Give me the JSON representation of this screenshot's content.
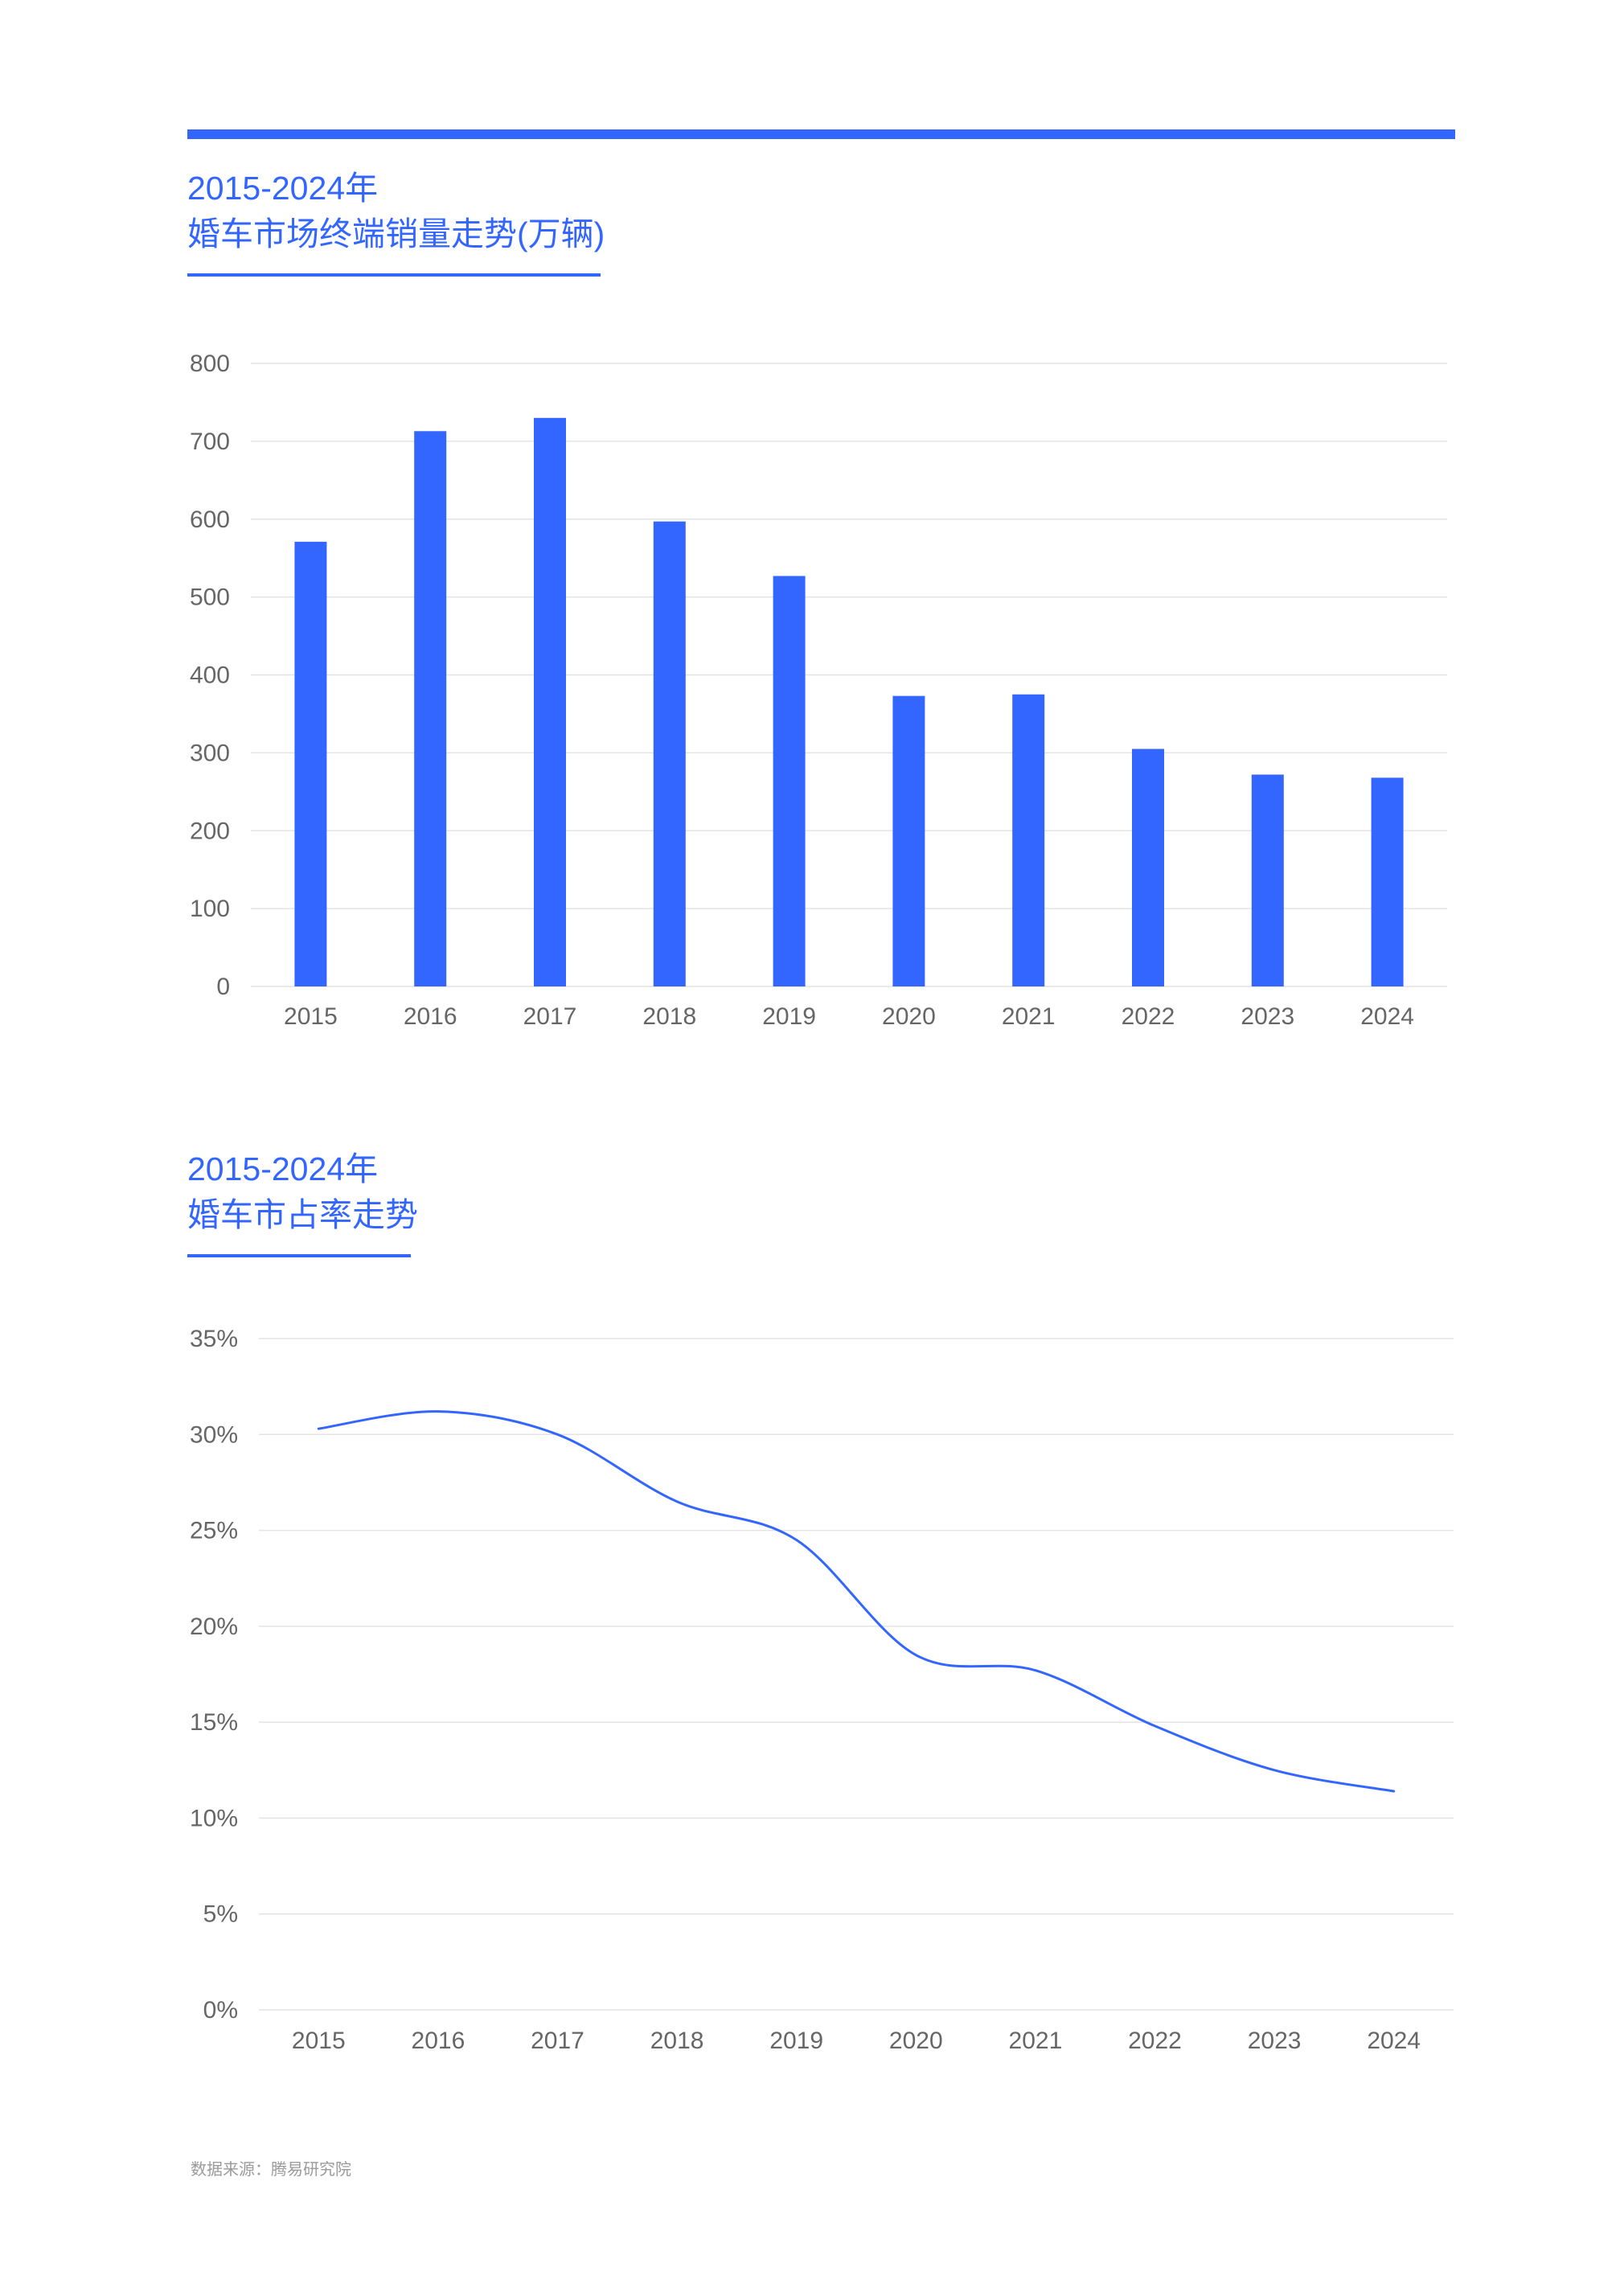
{
  "accent_color": "#3366ff",
  "header": {
    "chart1_title_line1": "2015-2024年",
    "chart1_title_line2": "婚车市场终端销量走势(万辆)",
    "chart2_title_line1": "2015-2024年",
    "chart2_title_line2": "婚车市占率走势"
  },
  "source_text": "数据来源：腾易研究院",
  "chart_data": [
    {
      "type": "bar",
      "title": "2015-2024年 婚车市场终端销量走势(万辆)",
      "categories": [
        "2015",
        "2016",
        "2017",
        "2018",
        "2019",
        "2020",
        "2021",
        "2022",
        "2023",
        "2024"
      ],
      "values": [
        571,
        713,
        730,
        597,
        527,
        373,
        375,
        305,
        272,
        268
      ],
      "ylim": [
        0,
        800
      ],
      "yticks": [
        0,
        100,
        200,
        300,
        400,
        500,
        600,
        700,
        800
      ],
      "ytick_labels": [
        "0",
        "100",
        "200",
        "300",
        "400",
        "500",
        "600",
        "700",
        "800"
      ],
      "grid": true,
      "color": "#3366ff"
    },
    {
      "type": "line",
      "title": "2015-2024年 婚车市占率走势",
      "categories": [
        "2015",
        "2016",
        "2017",
        "2018",
        "2019",
        "2020",
        "2021",
        "2022",
        "2023",
        "2024"
      ],
      "values": [
        30.3,
        31.2,
        30.0,
        26.5,
        24.5,
        18.5,
        17.7,
        14.8,
        12.5,
        11.4
      ],
      "ylim": [
        0,
        35
      ],
      "yticks": [
        0,
        5,
        10,
        15,
        20,
        25,
        30,
        35
      ],
      "ytick_labels": [
        "0%",
        "5%",
        "10%",
        "15%",
        "20%",
        "25%",
        "30%",
        "35%"
      ],
      "grid": true,
      "color": "#3366ff",
      "smooth": true
    }
  ]
}
